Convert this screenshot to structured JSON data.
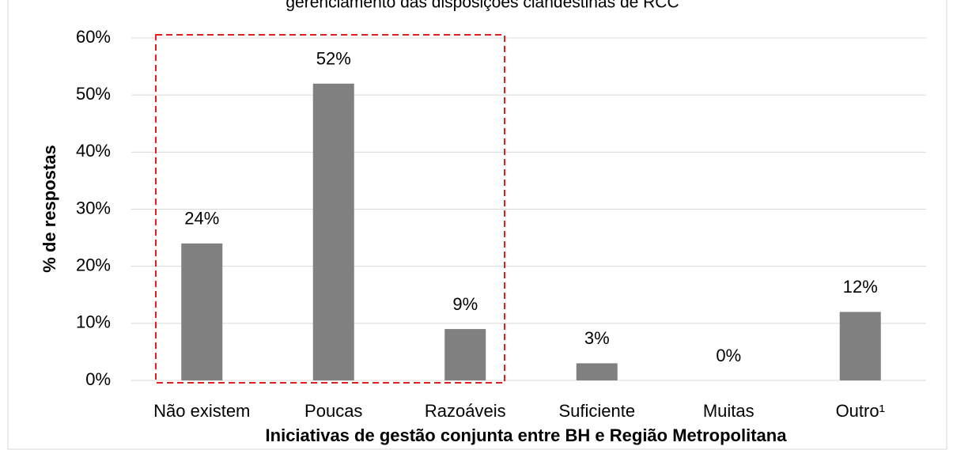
{
  "chart_data": {
    "type": "bar",
    "title": "gerenciamento das disposições clandestinas de RCC",
    "x_label": "Iniciativas de gestão conjunta entre BH e Região Metropolitana",
    "y_label": "% de respostas",
    "categories": [
      "Não existem",
      "Poucas",
      "Razoáveis",
      "Suficiente",
      "Muitas",
      "Outro¹"
    ],
    "values": [
      24,
      52,
      9,
      3,
      0,
      12
    ],
    "value_labels": [
      "24%",
      "52%",
      "9%",
      "3%",
      "0%",
      "12%"
    ],
    "color": "#808080",
    "ylim": [
      0,
      60
    ],
    "yticks": [
      {
        "value": 0,
        "label": "0%"
      },
      {
        "value": 10,
        "label": "10%"
      },
      {
        "value": 20,
        "label": "20%"
      },
      {
        "value": 30,
        "label": "30%"
      },
      {
        "value": 40,
        "label": "40%"
      },
      {
        "value": 50,
        "label": "50%"
      },
      {
        "value": 60,
        "label": "60%"
      }
    ],
    "grid": true
  }
}
